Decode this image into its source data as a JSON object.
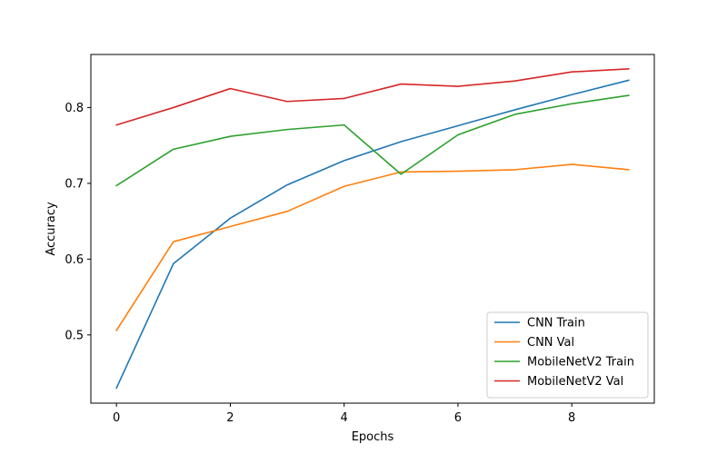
{
  "chart_data": {
    "type": "line",
    "title": "",
    "xlabel": "Epochs",
    "ylabel": "Accuracy",
    "xlim": [
      -0.45,
      9.45
    ],
    "ylim": [
      0.41,
      0.87
    ],
    "xticks": [
      0,
      2,
      4,
      6,
      8
    ],
    "yticks": [
      0.5,
      0.6,
      0.7,
      0.8
    ],
    "grid": false,
    "legend_position": "lower-right",
    "x": [
      0,
      1,
      2,
      3,
      4,
      5,
      6,
      7,
      8,
      9
    ],
    "series": [
      {
        "name": "CNN Train",
        "color": "#1f77b4",
        "values": [
          0.43,
          0.594,
          0.654,
          0.698,
          0.73,
          0.755,
          0.776,
          0.797,
          0.817,
          0.836
        ]
      },
      {
        "name": "CNN Val",
        "color": "#ff7f0e",
        "values": [
          0.506,
          0.623,
          0.643,
          0.663,
          0.696,
          0.715,
          0.716,
          0.718,
          0.725,
          0.718
        ]
      },
      {
        "name": "MobileNetV2 Train",
        "color": "#2ca02c",
        "values": [
          0.697,
          0.745,
          0.762,
          0.771,
          0.777,
          0.712,
          0.764,
          0.791,
          0.805,
          0.816
        ]
      },
      {
        "name": "MobileNetV2 Val",
        "color": "#d62728",
        "values": [
          0.777,
          0.8,
          0.825,
          0.808,
          0.812,
          0.831,
          0.828,
          0.835,
          0.847,
          0.851
        ]
      }
    ]
  }
}
